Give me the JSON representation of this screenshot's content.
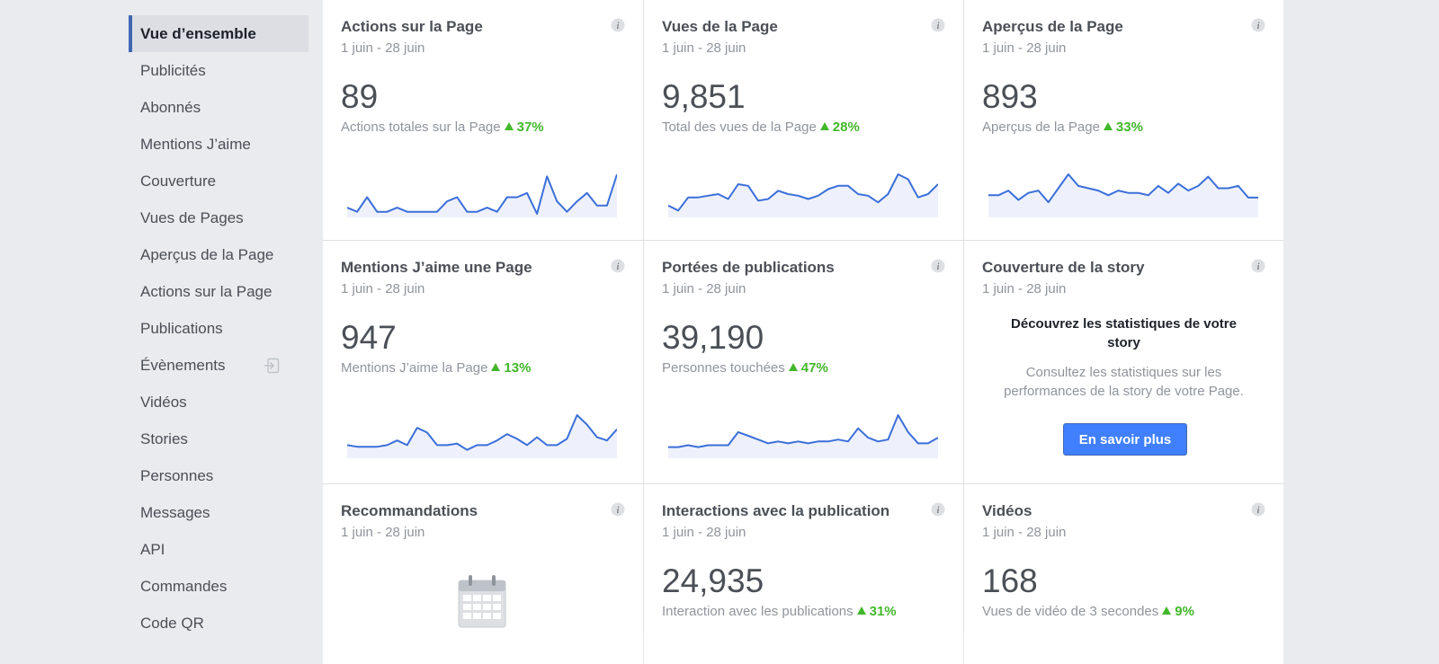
{
  "sidebar": {
    "items": [
      {
        "label": "Vue d’ensemble"
      },
      {
        "label": "Publicités"
      },
      {
        "label": "Abonnés"
      },
      {
        "label": "Mentions J’aime"
      },
      {
        "label": "Couverture"
      },
      {
        "label": "Vues de Pages"
      },
      {
        "label": "Aperçus de la Page"
      },
      {
        "label": "Actions sur la Page"
      },
      {
        "label": "Publications"
      },
      {
        "label": "Évènements"
      },
      {
        "label": "Vidéos"
      },
      {
        "label": "Stories"
      },
      {
        "label": "Personnes"
      },
      {
        "label": "Messages"
      },
      {
        "label": "API"
      },
      {
        "label": "Commandes"
      },
      {
        "label": "Code QR"
      }
    ]
  },
  "cards": [
    {
      "title": "Actions sur la Page",
      "date": "1 juin - 28 juin",
      "value": "89",
      "metric": "Actions totales sur la Page",
      "delta": "37%",
      "series": [
        3,
        1,
        8,
        1,
        1,
        3,
        1,
        1,
        1,
        1,
        6,
        8,
        1,
        1,
        3,
        1,
        8,
        8,
        10,
        0,
        18,
        6,
        1,
        6,
        10,
        4,
        4,
        19
      ]
    },
    {
      "title": "Vues de la Page",
      "date": "1 juin - 28 juin",
      "value": "9,851",
      "metric": "Total des vues de la Page",
      "delta": "28%",
      "series": [
        5,
        2,
        10,
        10,
        11,
        12,
        9,
        18,
        17,
        8,
        9,
        14,
        12,
        11,
        9,
        11,
        15,
        17,
        17,
        12,
        11,
        7,
        12,
        24,
        21,
        10,
        12,
        18
      ]
    },
    {
      "title": "Aperçus de la Page",
      "date": "1 juin - 28 juin",
      "value": "893",
      "metric": "Aperçus de la Page",
      "delta": "33%",
      "series": [
        8,
        8,
        10,
        6,
        9,
        10,
        5,
        11,
        17,
        12,
        11,
        10,
        8,
        10,
        9,
        9,
        8,
        12,
        9,
        13,
        10,
        12,
        16,
        11,
        11,
        12,
        7,
        7
      ]
    },
    {
      "title": "Mentions J’aime une Page",
      "date": "1 juin - 28 juin",
      "value": "947",
      "metric": "Mentions J’aime la Page",
      "delta": "13%",
      "series": [
        6,
        5,
        5,
        5,
        6,
        9,
        6,
        17,
        14,
        6,
        6,
        7,
        3,
        6,
        6,
        9,
        13,
        10,
        6,
        11,
        6,
        6,
        10,
        25,
        19,
        11,
        9,
        16
      ]
    },
    {
      "title": "Portées de publications",
      "date": "1 juin - 28 juin",
      "value": "39,190",
      "metric": "Personnes touchées",
      "delta": "47%",
      "series": [
        4,
        4,
        5,
        4,
        5,
        5,
        5,
        12,
        10,
        8,
        6,
        7,
        6,
        7,
        6,
        7,
        7,
        8,
        7,
        14,
        9,
        7,
        8,
        21,
        12,
        6,
        6,
        9
      ]
    },
    {
      "title": "Couverture de la story",
      "date": "1 juin - 28 juin",
      "promo_heading": "Découvrez les statistiques de votre story",
      "promo_body": "Consultez les statistiques sur les performances de la story de votre Page.",
      "button_label": "En savoir plus"
    },
    {
      "title": "Recommandations",
      "date": "1 juin - 28 juin"
    },
    {
      "title": "Interactions avec la publication",
      "date": "1 juin - 28 juin",
      "value": "24,935",
      "metric": "Interaction avec les publications",
      "delta": "31%"
    },
    {
      "title": "Vidéos",
      "date": "1 juin - 28 juin",
      "value": "168",
      "metric": "Vues de vidéo de 3 secondes",
      "delta": "9%"
    }
  ],
  "colors": {
    "accent": "#4267b2",
    "button": "#4080ff",
    "positive": "#42b72a",
    "sparkline": "#3b6fd9",
    "sparkfill": "#eef1fb"
  }
}
